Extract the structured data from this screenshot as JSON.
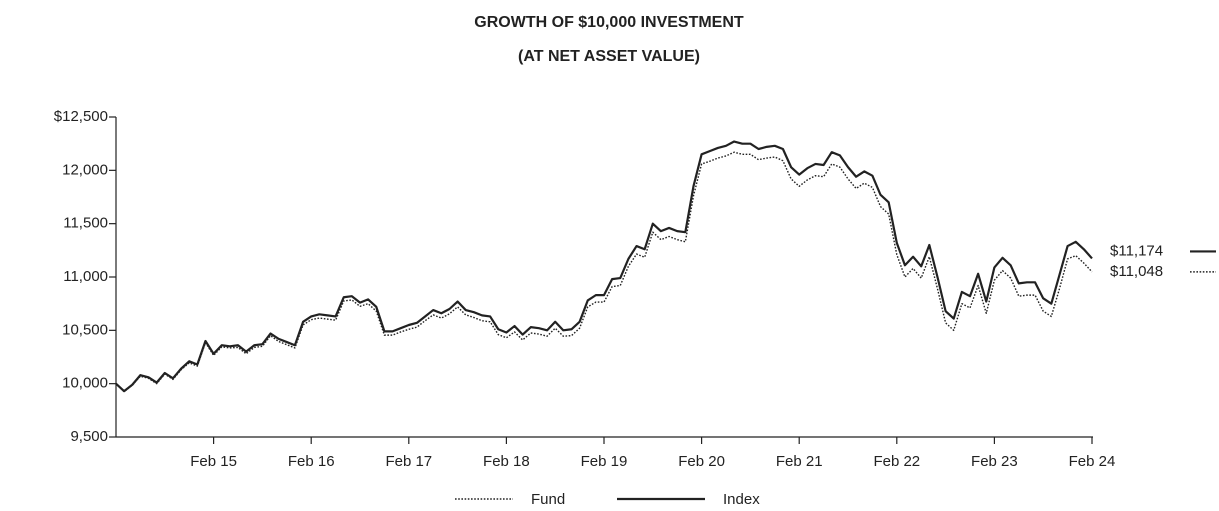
{
  "chart_data": {
    "type": "line",
    "title": "GROWTH OF $10,000 INVESTMENT",
    "subtitle": "(AT NET ASSET VALUE)",
    "categories": [
      null,
      null,
      null,
      null,
      null,
      null,
      null,
      null,
      null,
      null,
      null,
      null,
      "Feb 15",
      null,
      null,
      null,
      null,
      null,
      null,
      null,
      null,
      null,
      null,
      null,
      "Feb 16",
      null,
      null,
      null,
      null,
      null,
      null,
      null,
      null,
      null,
      null,
      null,
      "Feb 17",
      null,
      null,
      null,
      null,
      null,
      null,
      null,
      null,
      null,
      null,
      null,
      "Feb 18",
      null,
      null,
      null,
      null,
      null,
      null,
      null,
      null,
      null,
      null,
      null,
      "Feb 19",
      null,
      null,
      null,
      null,
      null,
      null,
      null,
      null,
      null,
      null,
      null,
      "Feb 20",
      null,
      null,
      null,
      null,
      null,
      null,
      null,
      null,
      null,
      null,
      null,
      "Feb 21",
      null,
      null,
      null,
      null,
      null,
      null,
      null,
      null,
      null,
      null,
      null,
      "Feb 22",
      null,
      null,
      null,
      null,
      null,
      null,
      null,
      null,
      null,
      null,
      null,
      "Feb 23",
      null,
      null,
      null,
      null,
      null,
      null,
      null,
      null,
      null,
      null,
      null,
      "Feb 24"
    ],
    "series": [
      {
        "name": "Fund",
        "color": "#222222",
        "style": "dotted",
        "last_label": "$11,048",
        "values": [
          10000,
          9925,
          9985,
          10070,
          10050,
          10000,
          10090,
          10040,
          10130,
          10195,
          10165,
          10385,
          10265,
          10345,
          10335,
          10340,
          10280,
          10340,
          10350,
          10450,
          10395,
          10365,
          10335,
          10550,
          10600,
          10615,
          10605,
          10595,
          10775,
          10785,
          10725,
          10750,
          10680,
          10455,
          10455,
          10485,
          10510,
          10530,
          10590,
          10645,
          10615,
          10655,
          10720,
          10645,
          10620,
          10590,
          10580,
          10460,
          10430,
          10485,
          10410,
          10475,
          10465,
          10445,
          10520,
          10445,
          10450,
          10520,
          10720,
          10765,
          10765,
          10910,
          10920,
          11100,
          11215,
          11185,
          11420,
          11350,
          11380,
          11350,
          11330,
          11760,
          12060,
          12085,
          12115,
          12135,
          12170,
          12150,
          12150,
          12100,
          12115,
          12125,
          12090,
          11920,
          11850,
          11910,
          11950,
          11940,
          12060,
          12030,
          11920,
          11830,
          11880,
          11840,
          11660,
          11590,
          11210,
          11000,
          11080,
          10990,
          11190,
          10890,
          10570,
          10500,
          10750,
          10710,
          10920,
          10660,
          10970,
          11060,
          10990,
          10820,
          10830,
          10830,
          10680,
          10630,
          10890,
          11170,
          11200,
          11130,
          11048
        ]
      },
      {
        "name": "Index",
        "color": "#222222",
        "style": "solid",
        "last_label": "$11,174",
        "values": [
          10000,
          9930,
          9990,
          10080,
          10060,
          10010,
          10100,
          10050,
          10140,
          10210,
          10180,
          10400,
          10280,
          10360,
          10350,
          10360,
          10300,
          10360,
          10370,
          10470,
          10420,
          10390,
          10360,
          10580,
          10630,
          10650,
          10640,
          10630,
          10810,
          10820,
          10760,
          10790,
          10720,
          10490,
          10490,
          10520,
          10550,
          10570,
          10630,
          10690,
          10660,
          10700,
          10770,
          10690,
          10670,
          10640,
          10630,
          10510,
          10480,
          10540,
          10460,
          10530,
          10520,
          10500,
          10580,
          10500,
          10510,
          10580,
          10780,
          10830,
          10830,
          10980,
          10990,
          11170,
          11290,
          11260,
          11500,
          11430,
          11460,
          11430,
          11420,
          11850,
          12150,
          12180,
          12210,
          12230,
          12270,
          12250,
          12250,
          12200,
          12220,
          12230,
          12200,
          12030,
          11960,
          12020,
          12060,
          12050,
          12170,
          12140,
          12030,
          11940,
          11990,
          11950,
          11770,
          11700,
          11320,
          11110,
          11190,
          11100,
          11300,
          11000,
          10680,
          10610,
          10860,
          10820,
          11030,
          10770,
          11090,
          11180,
          11110,
          10940,
          10950,
          10950,
          10800,
          10750,
          11020,
          11290,
          11330,
          11260,
          11174
        ]
      }
    ],
    "ylim": [
      9500,
      12500
    ],
    "yticks": [
      {
        "value": 9500,
        "label": "9,500"
      },
      {
        "value": 10000,
        "label": "10,000"
      },
      {
        "value": 10500,
        "label": "10,500"
      },
      {
        "value": 11000,
        "label": "11,000"
      },
      {
        "value": 11500,
        "label": "11,500"
      },
      {
        "value": 12000,
        "label": "12,000"
      },
      {
        "value": 12500,
        "label": "$12,500"
      }
    ],
    "grid": false
  }
}
